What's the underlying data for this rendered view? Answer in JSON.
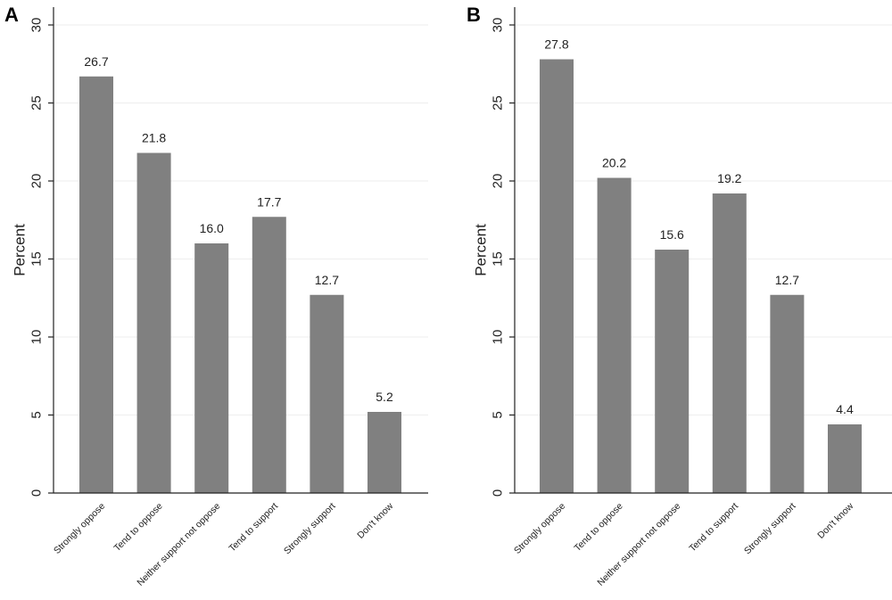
{
  "chart_data": [
    {
      "type": "bar",
      "panel": "A",
      "ylabel": "Percent",
      "ylim": [
        0,
        30
      ],
      "yticks": [
        0,
        5,
        10,
        15,
        20,
        25,
        30
      ],
      "grid": true,
      "bar_color": "#808080",
      "categories": [
        "Strongly oppose",
        "Tend to oppose",
        "Neither support not oppose",
        "Tend to support",
        "Strongly support",
        "Don't know"
      ],
      "values": [
        26.7,
        21.8,
        16.0,
        17.7,
        12.7,
        5.2
      ],
      "value_labels": [
        "26.7",
        "21.8",
        "16.0",
        "17.7",
        "12.7",
        "5.2"
      ]
    },
    {
      "type": "bar",
      "panel": "B",
      "ylabel": "Percent",
      "ylim": [
        0,
        30
      ],
      "yticks": [
        0,
        5,
        10,
        15,
        20,
        25,
        30
      ],
      "grid": true,
      "bar_color": "#808080",
      "categories": [
        "Strongly oppose",
        "Tend to oppose",
        "Neither support not oppose",
        "Tend to support",
        "Strongly support",
        "Don't know"
      ],
      "values": [
        27.8,
        20.2,
        15.6,
        19.2,
        12.7,
        4.4
      ],
      "value_labels": [
        "27.8",
        "20.2",
        "15.6",
        "19.2",
        "12.7",
        "4.4"
      ]
    }
  ]
}
